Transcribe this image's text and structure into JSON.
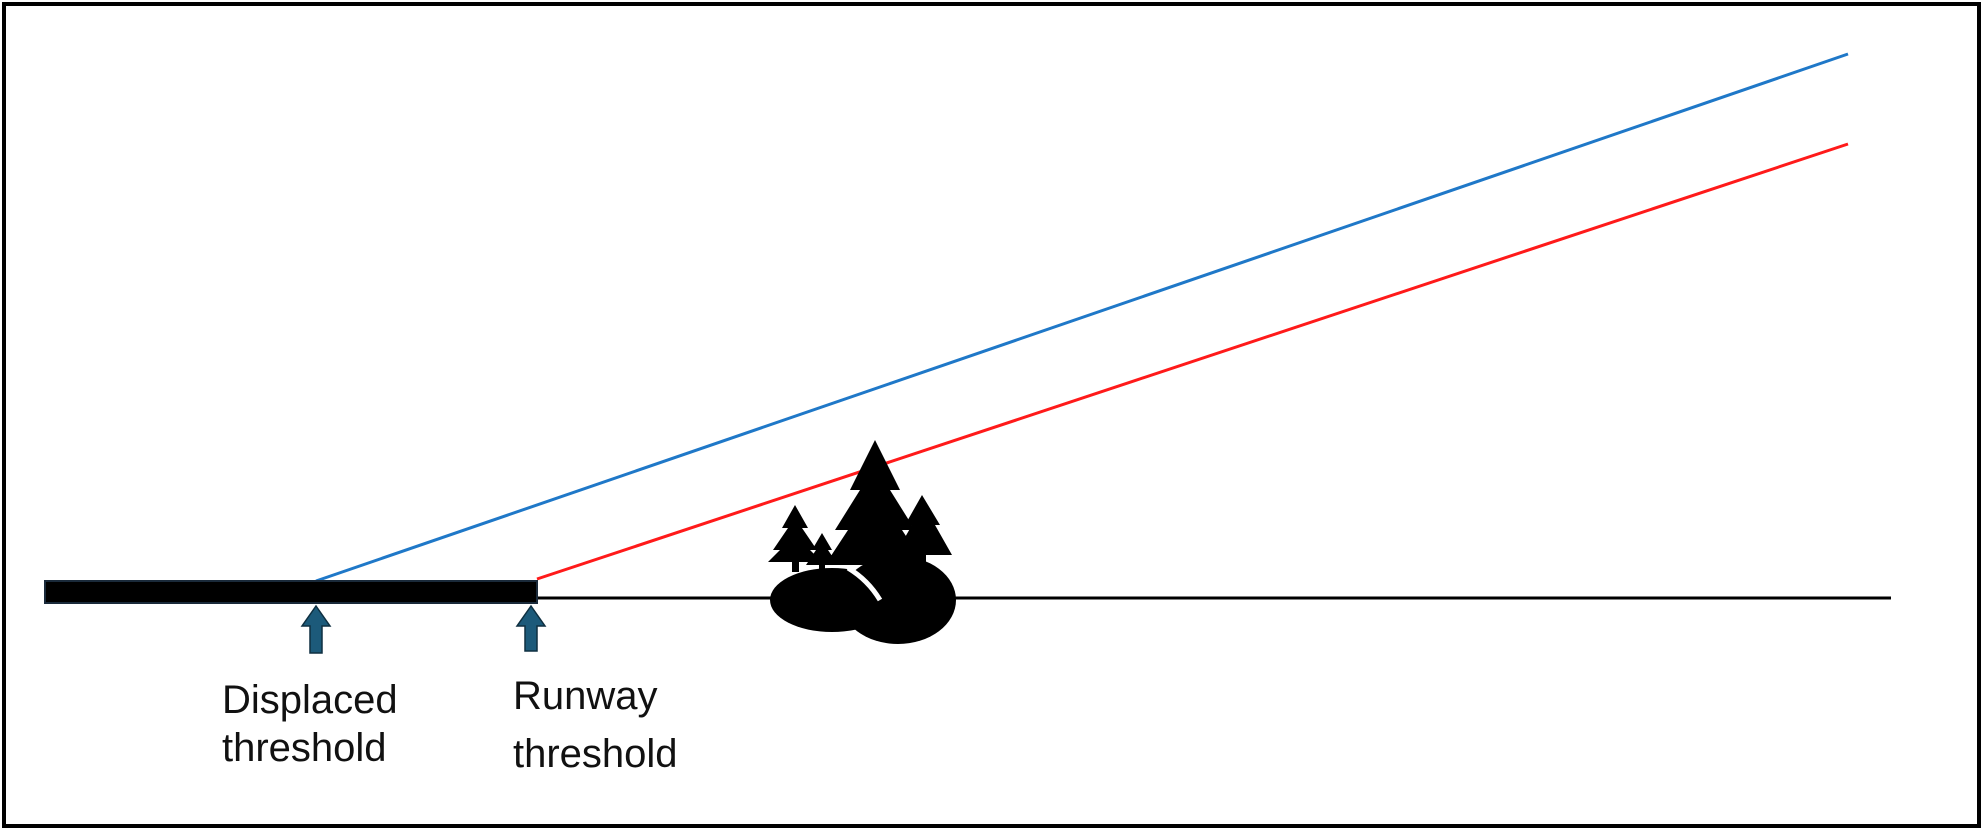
{
  "labels": {
    "displaced": [
      "Displaced",
      "threshold"
    ],
    "runway": [
      "Runway",
      "threshold"
    ]
  },
  "colors": {
    "upper_line": "#1f78c8",
    "lower_line": "#ff1a1a",
    "runway": "#000000",
    "arrow": "#1c5a7a"
  },
  "icons": {
    "trees": "trees-icon",
    "arrow": "arrow-up-icon"
  }
}
